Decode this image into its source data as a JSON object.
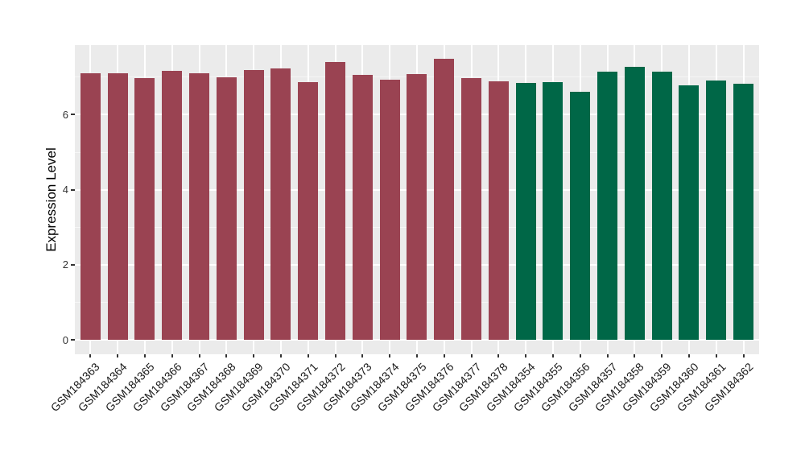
{
  "chart_data": {
    "type": "bar",
    "title": "",
    "xlabel": "",
    "ylabel": "Expression Level",
    "categories": [
      "GSM184363",
      "GSM184364",
      "GSM184365",
      "GSM184366",
      "GSM184367",
      "GSM184368",
      "GSM184369",
      "GSM184370",
      "GSM184371",
      "GSM184372",
      "GSM184373",
      "GSM184374",
      "GSM184375",
      "GSM184376",
      "GSM184377",
      "GSM184378",
      "GSM184354",
      "GSM184355",
      "GSM184356",
      "GSM184357",
      "GSM184358",
      "GSM184359",
      "GSM184360",
      "GSM184361",
      "GSM184362"
    ],
    "values": [
      7.1,
      7.1,
      6.97,
      7.16,
      7.1,
      7.0,
      7.18,
      7.24,
      6.86,
      7.4,
      7.05,
      6.93,
      7.09,
      7.5,
      6.97,
      6.89,
      6.85,
      6.86,
      6.6,
      7.14,
      7.27,
      7.15,
      6.78,
      6.9,
      6.83
    ],
    "groups": [
      {
        "name": "group-1",
        "color": "#9A4352",
        "count": 16
      },
      {
        "name": "group-2",
        "color": "#006747",
        "count": 9
      }
    ],
    "bar_colors": [
      "#9A4352",
      "#9A4352",
      "#9A4352",
      "#9A4352",
      "#9A4352",
      "#9A4352",
      "#9A4352",
      "#9A4352",
      "#9A4352",
      "#9A4352",
      "#9A4352",
      "#9A4352",
      "#9A4352",
      "#9A4352",
      "#9A4352",
      "#9A4352",
      "#006747",
      "#006747",
      "#006747",
      "#006747",
      "#006747",
      "#006747",
      "#006747",
      "#006747",
      "#006747"
    ],
    "ylim": [
      0,
      7.85
    ],
    "yticks": [
      0,
      2,
      4,
      6
    ],
    "yminor": [
      1,
      3,
      5,
      7
    ],
    "grid": true,
    "legend_position": "none",
    "panel_background": "#EBEBEB",
    "major_grid_color": "#FFFFFF",
    "minor_grid_color": "#F6F6F6",
    "tick_color": "#333333",
    "x_label_rotation_deg": 45
  }
}
